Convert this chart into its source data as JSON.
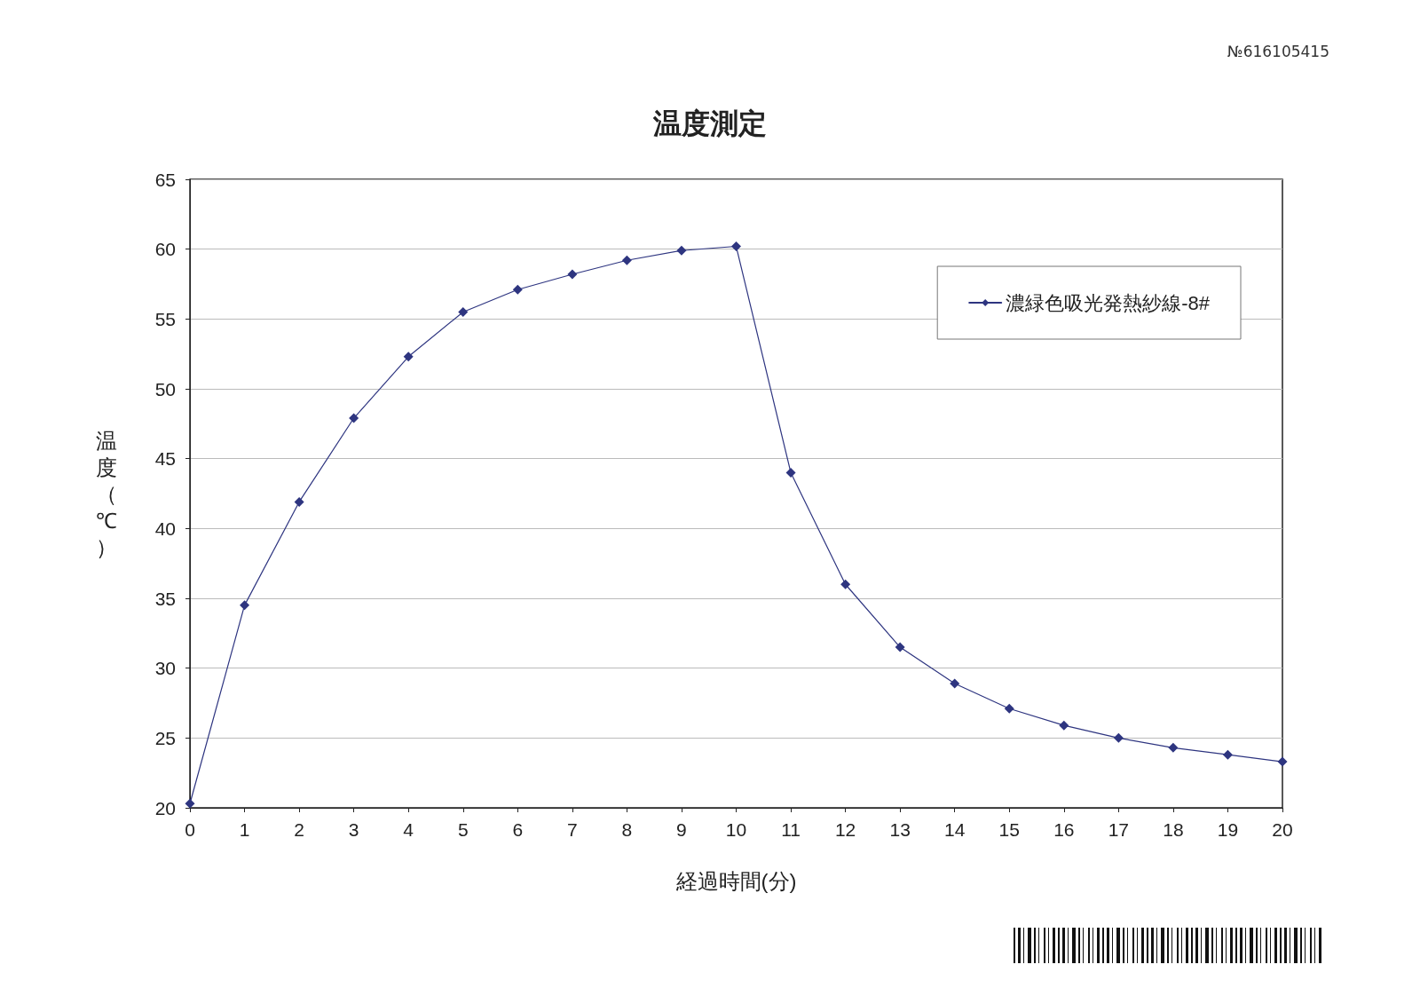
{
  "chart_data": {
    "type": "line",
    "title": "温度測定",
    "xlabel": "経過時間(分)",
    "ylabel": "温度（℃）",
    "annotations": [
      "№616105415"
    ],
    "x": [
      0,
      1,
      2,
      3,
      4,
      5,
      6,
      7,
      8,
      9,
      10,
      11,
      12,
      13,
      14,
      15,
      16,
      17,
      18,
      19,
      20
    ],
    "series": [
      {
        "name": "濃緑色吸光発熱紗線-8#",
        "color": "#2e3580",
        "values": [
          20.3,
          34.5,
          41.9,
          47.9,
          52.3,
          55.5,
          57.1,
          58.2,
          59.2,
          59.9,
          60.2,
          44.0,
          36.0,
          31.5,
          28.9,
          27.1,
          25.9,
          25.0,
          24.3,
          23.8,
          23.3
        ]
      }
    ],
    "xlim": [
      0,
      20
    ],
    "xticks": [
      0,
      1,
      2,
      3,
      4,
      5,
      6,
      7,
      8,
      9,
      10,
      11,
      12,
      13,
      14,
      15,
      16,
      17,
      18,
      19,
      20
    ],
    "ylim": [
      20,
      65
    ],
    "yticks": [
      20,
      25,
      30,
      35,
      40,
      45,
      50,
      55,
      60,
      65
    ],
    "grid": "y",
    "legend": "top right",
    "marker": "diamond",
    "line_style": "solid"
  }
}
